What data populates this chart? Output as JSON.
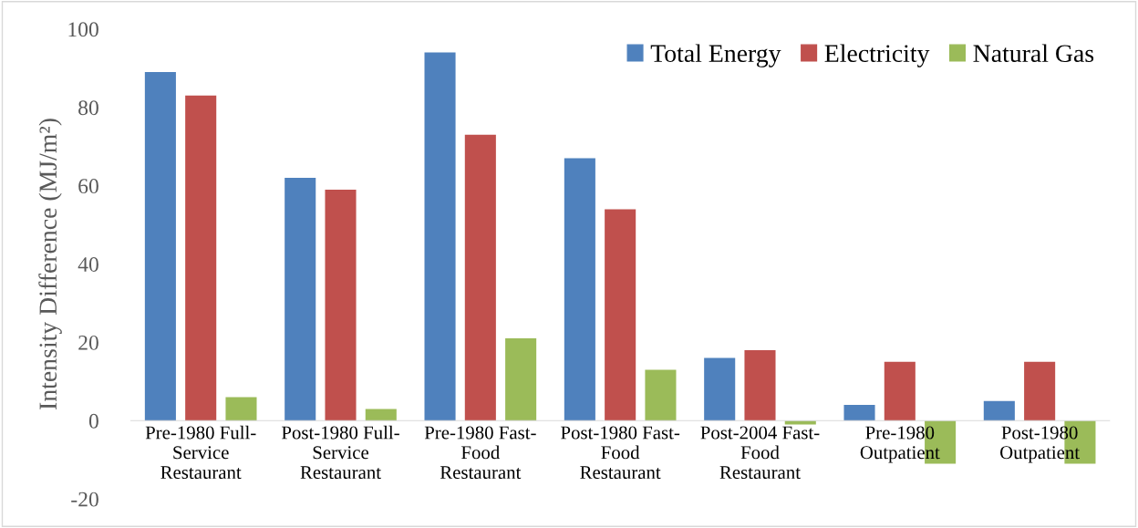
{
  "chart_data": {
    "type": "bar",
    "ylabel": "Intensity Difference (MJ/m²)",
    "categories": [
      "Pre-1980 Full-\nService\nRestaurant",
      "Post-1980 Full-\nService\nRestaurant",
      "Pre-1980 Fast-\nFood\nRestaurant",
      "Post-1980 Fast-\nFood\nRestaurant",
      "Post-2004 Fast-\nFood\nRestaurant",
      "Pre-1980\nOutpatient",
      "Post-1980\nOutpatient"
    ],
    "series": [
      {
        "name": "Total Energy",
        "color": "#4f81bd",
        "values": [
          89,
          62,
          94,
          67,
          16,
          4,
          5
        ]
      },
      {
        "name": "Electricity",
        "color": "#c0504d",
        "values": [
          83,
          59,
          73,
          54,
          18,
          15,
          15
        ]
      },
      {
        "name": "Natural Gas",
        "color": "#9bbb59",
        "values": [
          6,
          3,
          21,
          13,
          -1,
          -11,
          -11
        ]
      }
    ],
    "ylim": [
      -20,
      100
    ],
    "yticks": [
      -20,
      0,
      20,
      40,
      60,
      80,
      100
    ],
    "grid": false,
    "legend": "top right"
  }
}
